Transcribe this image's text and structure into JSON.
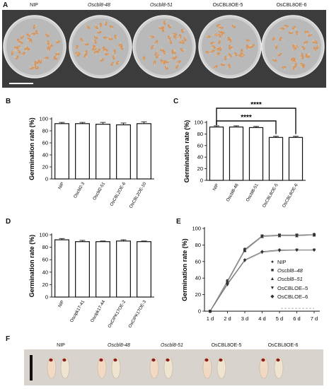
{
  "panel_labels": {
    "a": "A",
    "b": "B",
    "c": "C",
    "d": "D",
    "e": "E",
    "f": "F"
  },
  "photo_a_labels": [
    {
      "text": "NIP",
      "italic": false
    },
    {
      "text": "Oscbl8-48",
      "italic": true
    },
    {
      "text": "Oscbl8-51",
      "italic": true
    },
    {
      "text": "OsCBL8OE-5",
      "italic": false
    },
    {
      "text": "OsCBL8OE-6",
      "italic": false
    }
  ],
  "photo_f_labels": [
    {
      "text": "NIP",
      "italic": false
    },
    {
      "text": "Oscbl8-48",
      "italic": true
    },
    {
      "text": "Oscbl8-51",
      "italic": true
    },
    {
      "text": "OsCBL8OE-5",
      "italic": false
    },
    {
      "text": "OsCBL8OE-6",
      "italic": false
    }
  ],
  "colors": {
    "bar_fill": "#ffffff",
    "bar_edge": "#111111",
    "line_light": "#aaaaaa",
    "line_dark": "#666666",
    "dish": "#b9b9b9",
    "background_dark": "#3c3c3c"
  },
  "chart_data": [
    {
      "id": "B",
      "type": "bar",
      "ylabel": "Germination rate (%)",
      "yticks": [
        0,
        20,
        40,
        60,
        80,
        100
      ],
      "ylim": [
        0,
        100
      ],
      "categories": [
        "NIP",
        "Oscbl2-3",
        "Oscbl2-51",
        "OsCBL2OE-6",
        "OsCBL2OE-10"
      ],
      "values": [
        92,
        92,
        91,
        90,
        92
      ],
      "errors": [
        2,
        2,
        3,
        3,
        3
      ]
    },
    {
      "id": "C",
      "type": "bar",
      "ylabel": "Germination rate (%)",
      "yticks": [
        0,
        20,
        40,
        60,
        80,
        100
      ],
      "ylim": [
        0,
        100
      ],
      "categories": [
        "NIP",
        "Oscbl8-48",
        "Oscbl8-51",
        "OsCBL8OE-5",
        "OsCBL8OE-6"
      ],
      "values": [
        92,
        92,
        91,
        74,
        74
      ],
      "errors": [
        2,
        2,
        2,
        2,
        2
      ],
      "significance": [
        {
          "from": 0,
          "to": 3,
          "label": "****"
        },
        {
          "from": 0,
          "to": 4,
          "label": "****"
        }
      ]
    },
    {
      "id": "D",
      "type": "bar",
      "ylabel": "Germination rate (%)",
      "yticks": [
        0,
        20,
        40,
        60,
        80,
        100
      ],
      "ylim": [
        0,
        100
      ],
      "categories": [
        "NIP",
        "Oscipk17-41",
        "Oscipk17-44",
        "OsCIPK17OE-2",
        "OsCIPK17OE-3"
      ],
      "values": [
        92,
        89,
        89,
        90,
        89
      ],
      "errors": [
        2,
        2,
        1,
        2,
        1
      ]
    },
    {
      "id": "E",
      "type": "line",
      "ylabel": "Germination rate (%)",
      "yticks": [
        0,
        20,
        40,
        60,
        80,
        100
      ],
      "ylim": [
        0,
        100
      ],
      "categories": [
        "1 d",
        "2 d",
        "3 d",
        "4 d",
        "5 d",
        "6 d",
        "7 d"
      ],
      "series": [
        {
          "name": "NIP",
          "marker": "●",
          "values": [
            0,
            37,
            75,
            91,
            92,
            92,
            93
          ]
        },
        {
          "name": "Oscbl8–48",
          "marker": "■",
          "values": [
            0,
            36,
            74,
            91,
            92,
            92,
            92
          ]
        },
        {
          "name": "Oscbl8–51",
          "marker": "▲",
          "values": [
            0,
            35,
            73,
            90,
            91,
            91,
            92
          ]
        },
        {
          "name": "OsCBLOE–5",
          "marker": "▼",
          "values": [
            0,
            32,
            61,
            71,
            73,
            74,
            74
          ]
        },
        {
          "name": "OsCBLOE–6",
          "marker": "◆",
          "values": [
            0,
            33,
            62,
            72,
            74,
            74,
            74
          ]
        }
      ],
      "legend": "right"
    }
  ]
}
